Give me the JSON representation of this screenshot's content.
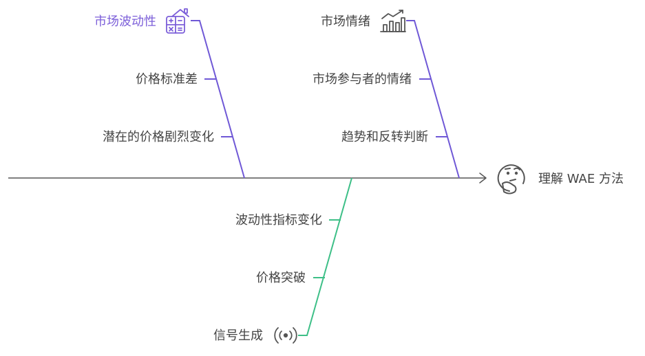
{
  "outcome": {
    "label": "理解 WAE 方法",
    "icon": "thinking-face-icon"
  },
  "branches": [
    {
      "id": "volatility",
      "title": "市场波动性",
      "title_icon": "calculator-house-icon",
      "color": "#6f58d6",
      "title_color": "#7c5fd9",
      "causes": [
        "价格标准差",
        "潜在的价格剧烈变化"
      ]
    },
    {
      "id": "sentiment",
      "title": "市场情绪",
      "title_icon": "bar-chart-trend-icon",
      "color": "#6f58d6",
      "title_color": "#444444",
      "causes": [
        "市场参与者的情绪",
        "趋势和反转判断"
      ]
    },
    {
      "id": "signals",
      "title": "信号生成",
      "title_icon": "broadcast-signal-icon",
      "color": "#3dbf87",
      "title_color": "#444444",
      "causes": [
        "波动性指标变化",
        "价格突破"
      ]
    }
  ],
  "spine_color": "#555555",
  "text_color": "#444444"
}
